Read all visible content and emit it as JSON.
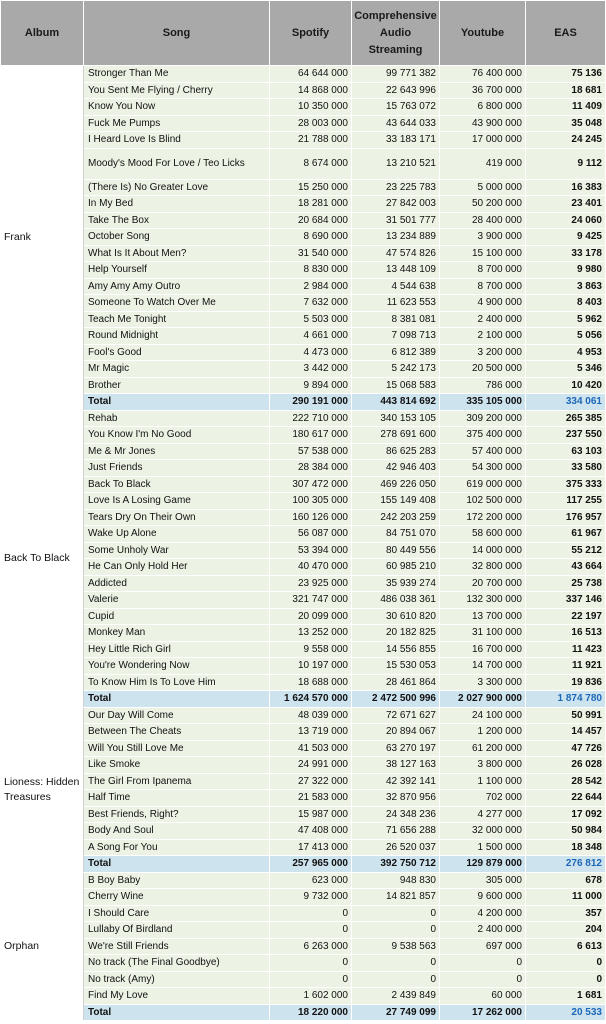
{
  "headers": {
    "album": "Album",
    "song": "Song",
    "spotify": "Spotify",
    "cas": "Comprehensive Audio Streaming",
    "youtube": "Youtube",
    "eas": "EAS"
  },
  "albums": [
    {
      "name": "Frank",
      "songs": [
        {
          "title": "Stronger Than Me",
          "spotify": "64 644 000",
          "cas": "99 771 382",
          "youtube": "76 400 000",
          "eas": "75 136"
        },
        {
          "title": "You Sent Me Flying / Cherry",
          "spotify": "14 868 000",
          "cas": "22 643 996",
          "youtube": "36 700 000",
          "eas": "18 681"
        },
        {
          "title": "Know You Now",
          "spotify": "10 350 000",
          "cas": "15 763 072",
          "youtube": "6 800 000",
          "eas": "11 409"
        },
        {
          "title": "Fuck Me Pumps",
          "spotify": "28 003 000",
          "cas": "43 644 033",
          "youtube": "43 900 000",
          "eas": "35 048"
        },
        {
          "title": "I Heard Love Is Blind",
          "spotify": "21 788 000",
          "cas": "33 183 171",
          "youtube": "17 000 000",
          "eas": "24 245"
        },
        {
          "title": "Moody's Mood For Love / Teo Licks",
          "spotify": "8 674 000",
          "cas": "13 210 521",
          "youtube": "419 000",
          "eas": "9 112",
          "tall": true
        },
        {
          "title": "(There Is) No Greater Love",
          "spotify": "15 250 000",
          "cas": "23 225 783",
          "youtube": "5 000 000",
          "eas": "16 383"
        },
        {
          "title": "In My Bed",
          "spotify": "18 281 000",
          "cas": "27 842 003",
          "youtube": "50 200 000",
          "eas": "23 401"
        },
        {
          "title": "Take The Box",
          "spotify": "20 684 000",
          "cas": "31 501 777",
          "youtube": "28 400 000",
          "eas": "24 060"
        },
        {
          "title": "October Song",
          "spotify": "8 690 000",
          "cas": "13 234 889",
          "youtube": "3 900 000",
          "eas": "9 425"
        },
        {
          "title": "What Is It About Men?",
          "spotify": "31 540 000",
          "cas": "47 574 826",
          "youtube": "15 100 000",
          "eas": "33 178"
        },
        {
          "title": "Help Yourself",
          "spotify": "8 830 000",
          "cas": "13 448 109",
          "youtube": "8 700 000",
          "eas": "9 980"
        },
        {
          "title": "Amy Amy Amy Outro",
          "spotify": "2 984 000",
          "cas": "4 544 638",
          "youtube": "8 700 000",
          "eas": "3 863"
        },
        {
          "title": "Someone To Watch Over Me",
          "spotify": "7 632 000",
          "cas": "11 623 553",
          "youtube": "4 900 000",
          "eas": "8 403"
        },
        {
          "title": "Teach Me Tonight",
          "spotify": "5 503 000",
          "cas": "8 381 081",
          "youtube": "2 400 000",
          "eas": "5 962"
        },
        {
          "title": "Round Midnight",
          "spotify": "4 661 000",
          "cas": "7 098 713",
          "youtube": "2 100 000",
          "eas": "5 056"
        },
        {
          "title": "Fool's Good",
          "spotify": "4 473 000",
          "cas": "6 812 389",
          "youtube": "3 200 000",
          "eas": "4 953"
        },
        {
          "title": "Mr Magic",
          "spotify": "3 442 000",
          "cas": "5 242 173",
          "youtube": "20 500 000",
          "eas": "5 346"
        },
        {
          "title": "Brother",
          "spotify": "9 894 000",
          "cas": "15 068 583",
          "youtube": "786 000",
          "eas": "10 420"
        }
      ],
      "total": {
        "label": "Total",
        "spotify": "290 191 000",
        "cas": "443 814 692",
        "youtube": "335 105 000",
        "eas": "334 061"
      }
    },
    {
      "name": "Back To Black",
      "songs": [
        {
          "title": "Rehab",
          "spotify": "222 710 000",
          "cas": "340 153 105",
          "youtube": "309 200 000",
          "eas": "265 385"
        },
        {
          "title": "You Know I'm No Good",
          "spotify": "180 617 000",
          "cas": "278 691 600",
          "youtube": "375 400 000",
          "eas": "237 550"
        },
        {
          "title": "Me & Mr Jones",
          "spotify": "57 538 000",
          "cas": "86 625 283",
          "youtube": "57 400 000",
          "eas": "63 103"
        },
        {
          "title": "Just Friends",
          "spotify": "28 384 000",
          "cas": "42 946 403",
          "youtube": "54 300 000",
          "eas": "33 580"
        },
        {
          "title": "Back To Black",
          "spotify": "307 472 000",
          "cas": "469 226 050",
          "youtube": "619 000 000",
          "eas": "375 333"
        },
        {
          "title": "Love Is A Losing Game",
          "spotify": "100 305 000",
          "cas": "155 149 408",
          "youtube": "102 500 000",
          "eas": "117 255"
        },
        {
          "title": "Tears Dry On Their Own",
          "spotify": "160 126 000",
          "cas": "242 203 259",
          "youtube": "172 200 000",
          "eas": "176 957"
        },
        {
          "title": "Wake Up Alone",
          "spotify": "56 087 000",
          "cas": "84 751 070",
          "youtube": "58 600 000",
          "eas": "61 967"
        },
        {
          "title": "Some Unholy War",
          "spotify": "53 394 000",
          "cas": "80 449 556",
          "youtube": "14 000 000",
          "eas": "55 212"
        },
        {
          "title": "He Can Only Hold Her",
          "spotify": "40 470 000",
          "cas": "60 985 210",
          "youtube": "32 800 000",
          "eas": "43 664"
        },
        {
          "title": "Addicted",
          "spotify": "23 925 000",
          "cas": "35 939 274",
          "youtube": "20 700 000",
          "eas": "25 738"
        },
        {
          "title": "Valerie",
          "spotify": "321 747 000",
          "cas": "486 038 361",
          "youtube": "132 300 000",
          "eas": "337 146"
        },
        {
          "title": "Cupid",
          "spotify": "20 099 000",
          "cas": "30 610 820",
          "youtube": "13 700 000",
          "eas": "22 197"
        },
        {
          "title": "Monkey Man",
          "spotify": "13 252 000",
          "cas": "20 182 825",
          "youtube": "31 100 000",
          "eas": "16 513"
        },
        {
          "title": "Hey Little Rich Girl",
          "spotify": "9 558 000",
          "cas": "14 556 855",
          "youtube": "16 700 000",
          "eas": "11 423"
        },
        {
          "title": "You're Wondering Now",
          "spotify": "10 197 000",
          "cas": "15 530 053",
          "youtube": "14 700 000",
          "eas": "11 921"
        },
        {
          "title": "To Know Him Is To Love Him",
          "spotify": "18 688 000",
          "cas": "28 461 864",
          "youtube": "3 300 000",
          "eas": "19 836"
        }
      ],
      "total": {
        "label": "Total",
        "spotify": "1 624 570 000",
        "cas": "2 472 500 996",
        "youtube": "2 027 900 000",
        "eas": "1 874 780"
      }
    },
    {
      "name": "Lioness: Hidden Treasures",
      "songs": [
        {
          "title": "Our Day Will Come",
          "spotify": "48 039 000",
          "cas": "72 671 627",
          "youtube": "24 100 000",
          "eas": "50 991"
        },
        {
          "title": "Between The Cheats",
          "spotify": "13 719 000",
          "cas": "20 894 067",
          "youtube": "1 200 000",
          "eas": "14 457"
        },
        {
          "title": "Will You Still Love Me",
          "spotify": "41 503 000",
          "cas": "63 270 197",
          "youtube": "61 200 000",
          "eas": "47 726"
        },
        {
          "title": "Like Smoke",
          "spotify": "24 991 000",
          "cas": "38 127 163",
          "youtube": "3 800 000",
          "eas": "26 028"
        },
        {
          "title": "The Girl From Ipanema",
          "spotify": "27 322 000",
          "cas": "42 392 141",
          "youtube": "1 100 000",
          "eas": "28 542"
        },
        {
          "title": "Half Time",
          "spotify": "21 583 000",
          "cas": "32 870 956",
          "youtube": "702 000",
          "eas": "22 644"
        },
        {
          "title": "Best Friends, Right?",
          "spotify": "15 987 000",
          "cas": "24 348 236",
          "youtube": "4 277 000",
          "eas": "17 092"
        },
        {
          "title": "Body And Soul",
          "spotify": "47 408 000",
          "cas": "71 656 288",
          "youtube": "32 000 000",
          "eas": "50 984"
        },
        {
          "title": "A Song For You",
          "spotify": "17 413 000",
          "cas": "26 520 037",
          "youtube": "1 500 000",
          "eas": "18 348"
        }
      ],
      "total": {
        "label": "Total",
        "spotify": "257 965 000",
        "cas": "392 750 712",
        "youtube": "129 879 000",
        "eas": "276 812"
      }
    },
    {
      "name": "Orphan",
      "songs": [
        {
          "title": "B Boy Baby",
          "spotify": "623 000",
          "cas": "948 830",
          "youtube": "305 000",
          "eas": "678"
        },
        {
          "title": "Cherry Wine",
          "spotify": "9 732 000",
          "cas": "14 821 857",
          "youtube": "9 600 000",
          "eas": "11 000"
        },
        {
          "title": "I Should Care",
          "spotify": "0",
          "cas": "0",
          "youtube": "4 200 000",
          "eas": "357"
        },
        {
          "title": "Lullaby Of Birdland",
          "spotify": "0",
          "cas": "0",
          "youtube": "2 400 000",
          "eas": "204"
        },
        {
          "title": "We're Still Friends",
          "spotify": "6 263 000",
          "cas": "9 538 563",
          "youtube": "697 000",
          "eas": "6 613"
        },
        {
          "title": "No track (The Final Goodbye)",
          "spotify": "0",
          "cas": "0",
          "youtube": "0",
          "eas": "0"
        },
        {
          "title": "No track (Amy)",
          "spotify": "0",
          "cas": "0",
          "youtube": "0",
          "eas": "0"
        },
        {
          "title": "Find My Love",
          "spotify": "1 602 000",
          "cas": "2 439 849",
          "youtube": "60 000",
          "eas": "1 681"
        }
      ],
      "total": {
        "label": "Total",
        "spotify": "18 220 000",
        "cas": "27 749 099",
        "youtube": "17 262 000",
        "eas": "20 533"
      }
    }
  ]
}
